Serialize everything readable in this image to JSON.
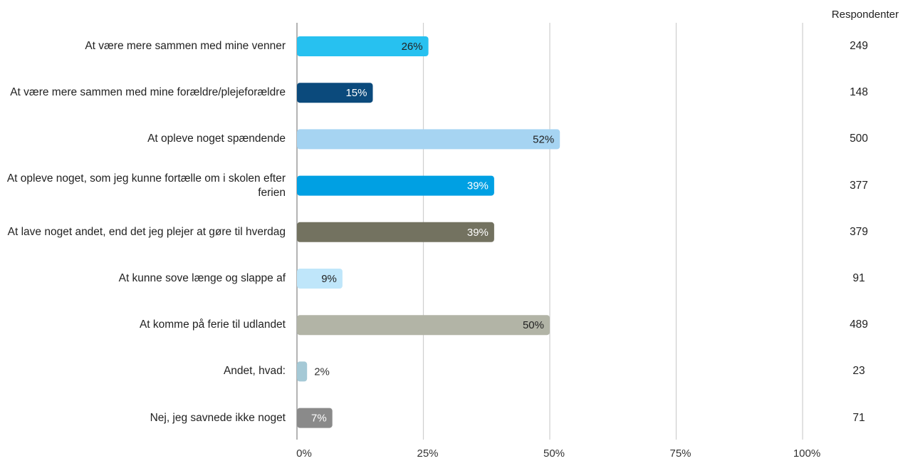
{
  "chart_data": {
    "type": "bar",
    "orientation": "horizontal",
    "categories": [
      "At være mere sammen med mine venner",
      "At være mere sammen med mine forældre/plejeforældre",
      "At opleve noget spændende",
      "At opleve noget, som jeg kunne fortælle om i skolen efter ferien",
      "At lave noget andet, end det jeg plejer at gøre til hverdag",
      "At kunne sove længe og slappe af",
      "At komme på ferie til udlandet",
      "Andet, hvad:",
      "Nej, jeg savnede ikke noget"
    ],
    "values": [
      26,
      15,
      52,
      39,
      39,
      9,
      50,
      2,
      7
    ],
    "value_labels": [
      "26%",
      "15%",
      "52%",
      "39%",
      "39%",
      "9%",
      "50%",
      "2%",
      "7%"
    ],
    "bar_colors": [
      "#27c1f0",
      "#0b4a7c",
      "#a6d4f2",
      "#00a0e3",
      "#737260",
      "#bfe6fa",
      "#b2b4a6",
      "#a5c9d6",
      "#8a8a8a"
    ],
    "label_colors": [
      "#222222",
      "#ffffff",
      "#222222",
      "#ffffff",
      "#ffffff",
      "#222222",
      "#222222",
      "#333333",
      "#ffffff"
    ],
    "respondents_header": "Respondenter",
    "respondents": [
      "249",
      "148",
      "500",
      "377",
      "379",
      "91",
      "489",
      "23",
      "71"
    ],
    "xlim": [
      0,
      100
    ],
    "x_ticks": [
      "0%",
      "25%",
      "50%",
      "75%",
      "100%"
    ],
    "grid": true,
    "title": "",
    "xlabel": "",
    "ylabel": ""
  }
}
